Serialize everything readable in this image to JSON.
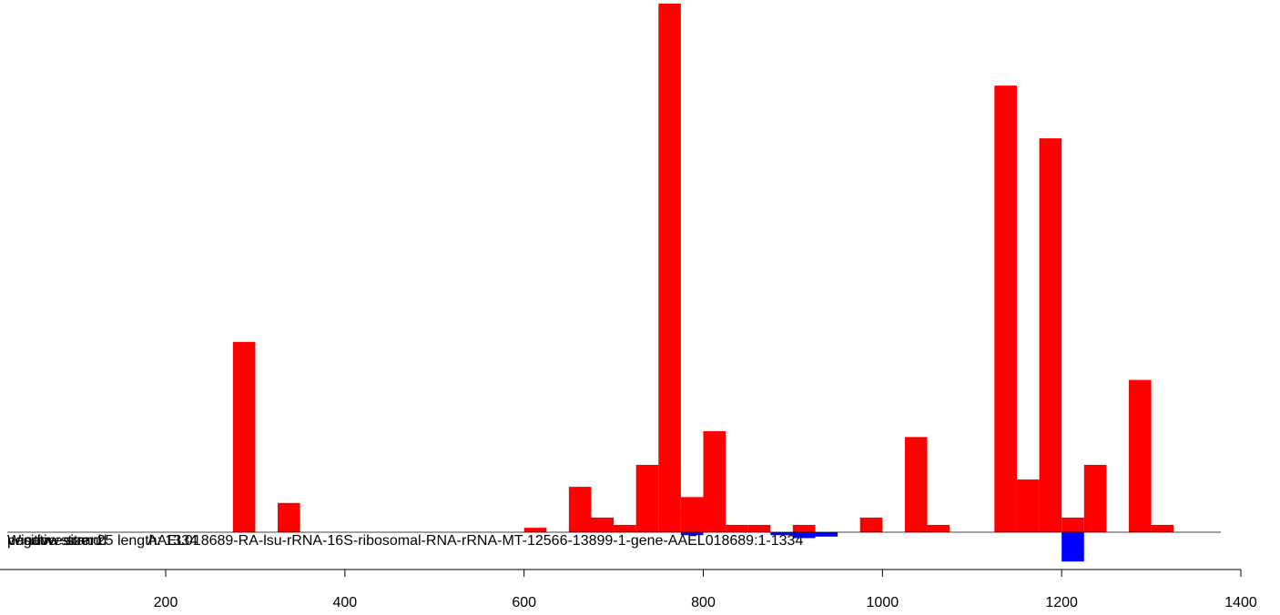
{
  "chart_data": {
    "type": "bar",
    "title": "",
    "xlabel": "",
    "ylabel": "",
    "xlim": [
      0,
      1400
    ],
    "x_ticks": [
      200,
      400,
      600,
      800,
      1000,
      1200,
      1400
    ],
    "annotations": [
      "Window size: 25 length: 1334",
      "positive strand",
      "negative strand",
      "AAEL018689-RA-lsu-rRNA-16S-ribosomal-RNA-rRNA-MT-12566-13899-1-gene-AAEL018689:1-1334"
    ],
    "series": [
      {
        "strand": "positive",
        "color": "#ff0000",
        "bin_width": 25,
        "x": [
          275,
          325,
          600,
          650,
          675,
          700,
          725,
          750,
          775,
          800,
          825,
          850,
          900,
          975,
          1025,
          1050,
          1125,
          1150,
          1175,
          1200,
          1225,
          1275,
          1300
        ],
        "values": [
          130,
          20,
          3,
          31,
          10,
          5,
          46,
          361,
          24,
          69,
          5,
          5,
          5,
          10,
          65,
          5,
          305,
          36,
          269,
          10,
          46,
          104,
          5
        ]
      },
      {
        "strand": "negative",
        "color": "#0000ff",
        "bin_width": 25,
        "x": [
          775,
          875,
          900,
          925,
          1200
        ],
        "values": [
          -2,
          -2,
          -4,
          -3,
          -20
        ]
      }
    ]
  }
}
